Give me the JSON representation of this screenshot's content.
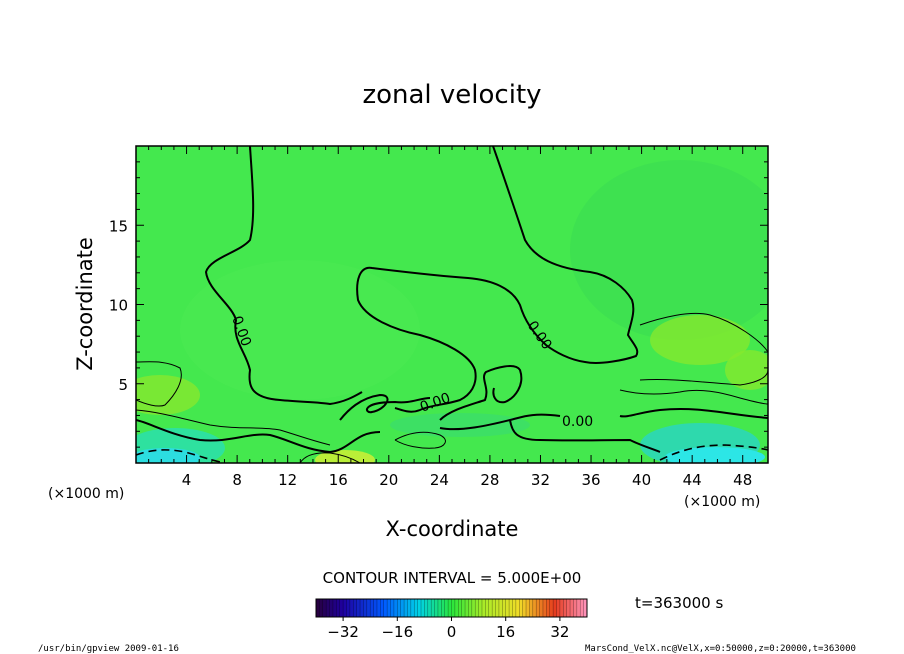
{
  "chart_data": {
    "type": "heatmap",
    "title": "zonal velocity",
    "xlabel": "X-coordinate",
    "ylabel": "Z-coordinate",
    "x_unit": "(×1000 m)",
    "y_unit": "(×1000 m)",
    "xlim": [
      0,
      50
    ],
    "ylim": [
      0,
      20
    ],
    "x_ticks": [
      4,
      8,
      12,
      16,
      20,
      24,
      28,
      32,
      36,
      40,
      44,
      48
    ],
    "y_ticks": [
      5,
      10,
      15
    ],
    "contour_interval": "CONTOUR INTERVAL = 5.000E+00",
    "contour_labels": [
      "0.00",
      "0.00",
      "0.00",
      "0.00",
      "0.00"
    ],
    "colorbar": {
      "range": [
        -40,
        40
      ],
      "tick_labels": [
        -32,
        -16,
        0,
        16,
        32
      ]
    },
    "time_label": "t=363000 s",
    "footer_left": "/usr/bin/gpview  2009-01-16",
    "footer_right": "MarsCond_VelX.nc@VelX,x=0:50000,z=0:20000,t=363000"
  }
}
